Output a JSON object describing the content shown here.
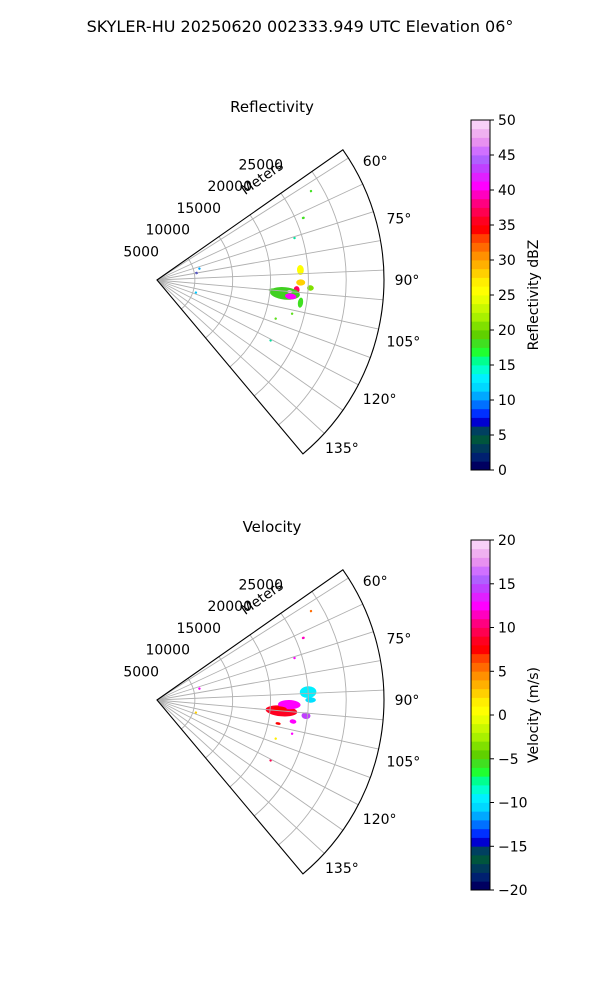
{
  "figure_title": "SKYLER-HU  20250620  002333.949 UTC Elevation 06°",
  "chart_data": [
    {
      "type": "polar-sector",
      "title": "Reflectivity",
      "radial_label": "Meters",
      "rlim": [
        0,
        30000
      ],
      "r_ticks": [
        5000,
        10000,
        15000,
        20000,
        25000
      ],
      "theta_range_deg": [
        55,
        140
      ],
      "theta_ticks": [
        "60°",
        "75°",
        "90°",
        "105°",
        "120°",
        "135°"
      ],
      "theta_tick_values": [
        60,
        75,
        90,
        105,
        120,
        135
      ],
      "grid": true,
      "colorbar": {
        "label": "Reflectivity dBZ",
        "range": [
          0,
          50
        ],
        "ticks": [
          "0",
          "5",
          "10",
          "15",
          "20",
          "25",
          "30",
          "35",
          "40",
          "45",
          "50"
        ],
        "colors": [
          "#000060",
          "#002070",
          "#003a5a",
          "#00553d",
          "#004060",
          "#0000d0",
          "#0030ff",
          "#0070ff",
          "#00a8ff",
          "#00d8ff",
          "#00f0ff",
          "#00ffd0",
          "#00ff90",
          "#20ff30",
          "#40e020",
          "#60d000",
          "#80e000",
          "#a8f000",
          "#c8f800",
          "#e8ff00",
          "#ffff00",
          "#ffee00",
          "#ffd000",
          "#ffb000",
          "#ff9000",
          "#ff6a00",
          "#ff4000",
          "#ff0000",
          "#ff0020",
          "#ff0050",
          "#ff0080",
          "#ff00c0",
          "#ff00ff",
          "#e020ff",
          "#c040ff",
          "#b060ff",
          "#d070ff",
          "#e890f0",
          "#f0b0f0",
          "#f8d0f8"
        ]
      },
      "echoes": [
        {
          "az": 95,
          "r": 15500,
          "w": 1.8,
          "d": 1400,
          "c": "#40e020"
        },
        {
          "az": 95,
          "r": 16000,
          "w": 1.2,
          "d": 900,
          "c": "#e8ff00"
        },
        {
          "az": 95,
          "r": 15800,
          "w": 0.7,
          "d": 600,
          "c": "#c040ff"
        },
        {
          "az": 86,
          "r": 19000,
          "w": 4.0,
          "d": 900,
          "c": "#ffff00"
        },
        {
          "az": 94,
          "r": 18500,
          "w": 3.0,
          "d": 800,
          "c": "#ff0060"
        },
        {
          "az": 99,
          "r": 19200,
          "w": 4.0,
          "d": 700,
          "c": "#40e020"
        },
        {
          "az": 96,
          "r": 17000,
          "w": 5.5,
          "d": 4000,
          "c": "#40d020"
        },
        {
          "az": 91,
          "r": 19000,
          "w": 2.5,
          "d": 1200,
          "c": "#ffd000"
        },
        {
          "az": 97,
          "r": 17800,
          "w": 2.5,
          "d": 1500,
          "c": "#ff00ff"
        },
        {
          "az": 95,
          "r": 17600,
          "w": 1.2,
          "d": 700,
          "c": "#f0c0f0"
        },
        {
          "az": 93,
          "r": 20300,
          "w": 2.0,
          "d": 900,
          "c": "#80e000"
        },
        {
          "az": 67,
          "r": 21000,
          "w": 0.8,
          "d": 400,
          "c": "#40e020"
        },
        {
          "az": 73,
          "r": 19000,
          "w": 0.6,
          "d": 300,
          "c": "#00e8a0"
        },
        {
          "az": 108,
          "r": 16500,
          "w": 0.5,
          "d": 300,
          "c": "#60e020"
        },
        {
          "az": 104,
          "r": 18400,
          "w": 0.8,
          "d": 300,
          "c": "#60e020"
        },
        {
          "az": 118,
          "r": 17000,
          "w": 0.6,
          "d": 300,
          "c": "#00e0a0"
        },
        {
          "az": 75,
          "r": 5800,
          "w": 1.0,
          "d": 300,
          "c": "#00a8ff"
        },
        {
          "az": 80,
          "r": 5300,
          "w": 1.2,
          "d": 400,
          "c": "#0000d0"
        },
        {
          "az": 108,
          "r": 5400,
          "w": 1.2,
          "d": 300,
          "c": "#00c8ff"
        },
        {
          "az": 60,
          "r": 23500,
          "w": 0.5,
          "d": 300,
          "c": "#40e020"
        }
      ]
    },
    {
      "type": "polar-sector",
      "title": "Velocity",
      "radial_label": "Meters",
      "rlim": [
        0,
        30000
      ],
      "r_ticks": [
        5000,
        10000,
        15000,
        20000,
        25000
      ],
      "theta_range_deg": [
        55,
        140
      ],
      "theta_ticks": [
        "60°",
        "75°",
        "90°",
        "105°",
        "120°",
        "135°"
      ],
      "theta_tick_values": [
        60,
        75,
        90,
        105,
        120,
        135
      ],
      "grid": true,
      "colorbar": {
        "label": "Velocity (m/s)",
        "range": [
          -20,
          20
        ],
        "ticks": [
          "−20",
          "−15",
          "−10",
          "−5",
          "0",
          "5",
          "10",
          "15",
          "20"
        ],
        "colors": [
          "#000060",
          "#002070",
          "#003a5a",
          "#00553d",
          "#004060",
          "#0000d0",
          "#0030ff",
          "#0070ff",
          "#00a8ff",
          "#00d8ff",
          "#00f0ff",
          "#00ffd0",
          "#00ff90",
          "#20ff30",
          "#40e020",
          "#60d000",
          "#80e000",
          "#a8f000",
          "#c8f800",
          "#e8ff00",
          "#ffff00",
          "#ffee00",
          "#ffd000",
          "#ffb000",
          "#ff9000",
          "#ff6a00",
          "#ff4000",
          "#ff0000",
          "#ff0020",
          "#ff0050",
          "#ff0080",
          "#ff00c0",
          "#ff00ff",
          "#e020ff",
          "#c040ff",
          "#b060ff",
          "#d070ff",
          "#e890f0",
          "#f0b0f0",
          "#f8d0f8"
        ]
      },
      "echoes": [
        {
          "az": 95,
          "r": 16500,
          "w": 5.0,
          "d": 4200,
          "c": "#ff0020"
        },
        {
          "az": 92,
          "r": 17500,
          "w": 4.0,
          "d": 3000,
          "c": "#ff00ff"
        },
        {
          "az": 87,
          "r": 20000,
          "w": 4.5,
          "d": 2200,
          "c": "#00f0ff"
        },
        {
          "az": 90,
          "r": 20300,
          "w": 2.0,
          "d": 1400,
          "c": "#00e0ff"
        },
        {
          "az": 96,
          "r": 19800,
          "w": 2.5,
          "d": 1200,
          "c": "#c040ff"
        },
        {
          "az": 94,
          "r": 16300,
          "w": 2.0,
          "d": 1800,
          "c": "#ff0000"
        },
        {
          "az": 99,
          "r": 18200,
          "w": 1.8,
          "d": 900,
          "c": "#ff00ff"
        },
        {
          "az": 101,
          "r": 16300,
          "w": 1.2,
          "d": 700,
          "c": "#ff0000"
        },
        {
          "az": 67,
          "r": 21000,
          "w": 0.8,
          "d": 400,
          "c": "#ff00c0"
        },
        {
          "az": 73,
          "r": 19000,
          "w": 0.6,
          "d": 300,
          "c": "#ff00ff"
        },
        {
          "az": 108,
          "r": 16500,
          "w": 0.5,
          "d": 300,
          "c": "#ffee00"
        },
        {
          "az": 104,
          "r": 18400,
          "w": 0.8,
          "d": 300,
          "c": "#ff00ff"
        },
        {
          "az": 118,
          "r": 17000,
          "w": 0.6,
          "d": 300,
          "c": "#ff0050"
        },
        {
          "az": 75,
          "r": 5800,
          "w": 1.0,
          "d": 300,
          "c": "#ff00ff"
        },
        {
          "az": 108,
          "r": 5400,
          "w": 1.2,
          "d": 300,
          "c": "#ffd000"
        },
        {
          "az": 60,
          "r": 23500,
          "w": 0.5,
          "d": 300,
          "c": "#ff6a00"
        }
      ]
    }
  ]
}
